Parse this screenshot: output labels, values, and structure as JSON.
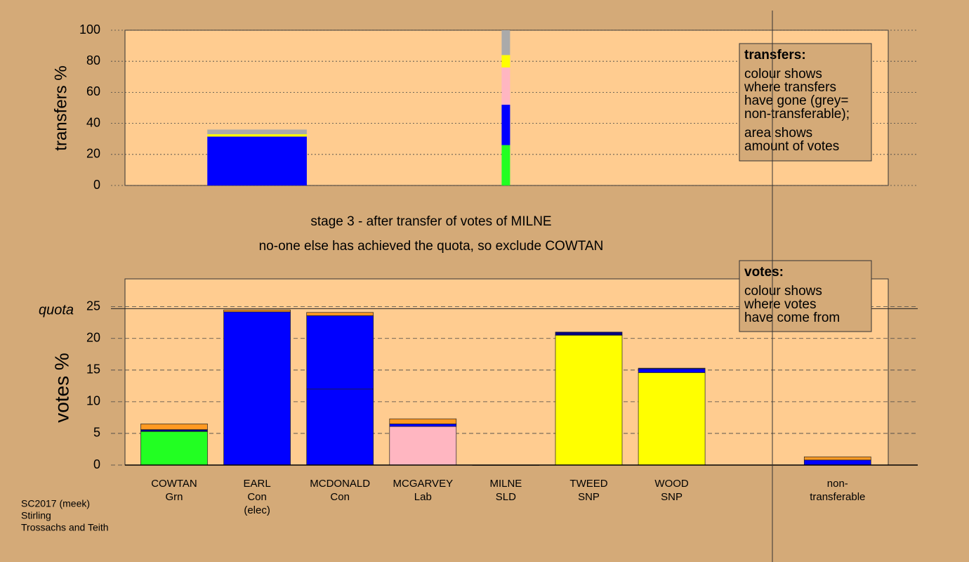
{
  "chart_data": [
    {
      "type": "transfer-bar",
      "y_label": "transfers %",
      "ylim": [
        0,
        100
      ],
      "yticks": [
        0,
        20,
        40,
        60,
        80,
        100
      ],
      "grid": true,
      "amounts": [
        null,
        5.1,
        null,
        null,
        1.2,
        null,
        null,
        null,
        null
      ],
      "stacks": [
        [],
        [
          {
            "value": 31.5,
            "color": "#0000ff"
          },
          {
            "value": 1.5,
            "color": "#ffff00"
          },
          {
            "value": 3,
            "color": "#aaaaaa"
          }
        ],
        [],
        [],
        [
          {
            "value": 26,
            "color": "#22ff22"
          },
          {
            "value": 26,
            "color": "#0000ff"
          },
          {
            "value": 24,
            "color": "#ffb6c1"
          },
          {
            "value": 8,
            "color": "#ffff00"
          },
          {
            "value": 16,
            "color": "#aaaaaa"
          }
        ],
        [],
        [],
        [],
        []
      ],
      "legend_title": "transfers:",
      "legend_lines": [
        "colour shows",
        "where transfers",
        "have gone (grey=",
        "non-transferable);",
        "area shows",
        "amount of votes"
      ]
    },
    {
      "type": "stacked-bar",
      "y_label": "votes %",
      "ylim": [
        0,
        29.4
      ],
      "yticks": [
        0,
        5,
        10,
        15,
        20,
        25
      ],
      "grid": true,
      "quota": 24.7,
      "quota_label": "quota",
      "categories": [
        [
          "COWTAN",
          "Grn"
        ],
        [
          "EARL",
          "Con",
          "(elec)"
        ],
        [
          "MCDONALD",
          "Con"
        ],
        [
          "MCGARVEY",
          "Lab"
        ],
        [
          "MILNE",
          "SLD"
        ],
        [
          "TWEED",
          "SNP"
        ],
        [
          "WOOD",
          "SNP"
        ],
        null,
        [
          "non-",
          "transferable"
        ]
      ],
      "stacks": [
        [
          {
            "value": 5.3,
            "color": "#22ff22"
          },
          {
            "value": 0.3,
            "color": "#000080"
          },
          {
            "value": 0.9,
            "color": "#ff9922"
          }
        ],
        [
          {
            "value": 24.2,
            "color": "#0000ff"
          },
          {
            "value": 0.3,
            "color": "#ff9922"
          }
        ],
        [
          {
            "value": 12,
            "color": "#0000ff"
          },
          {
            "value": 11.6,
            "color": "#0000ff"
          },
          {
            "value": 0.5,
            "color": "#ff9922"
          }
        ],
        [
          {
            "value": 6.1,
            "color": "#ffb6c1"
          },
          {
            "value": 0.4,
            "color": "#0000ff"
          },
          {
            "value": 0.8,
            "color": "#ff9922"
          }
        ],
        [
          {
            "value": 0,
            "color": "#0000ff"
          }
        ],
        [
          {
            "value": 20.5,
            "color": "#ffff00"
          },
          {
            "value": 0.5,
            "color": "#000080"
          }
        ],
        [
          {
            "value": 14.6,
            "color": "#ffff00"
          },
          {
            "value": 0.6,
            "color": "#0000ff"
          },
          {
            "value": 0.1,
            "color": "#000080"
          }
        ],
        [],
        [
          {
            "value": 0.8,
            "color": "#0000ff"
          },
          {
            "value": 0.5,
            "color": "#ff9922"
          }
        ]
      ],
      "legend_title": "votes:",
      "legend_lines": [
        "colour shows",
        "where votes",
        "have come from"
      ]
    }
  ],
  "stage_lines": [
    "stage 3 - after transfer of votes of MILNE",
    "no-one else has achieved the quota, so exclude COWTAN"
  ],
  "footer": [
    "SC2017 (meek)",
    "Stirling",
    "Trossachs and Teith"
  ]
}
